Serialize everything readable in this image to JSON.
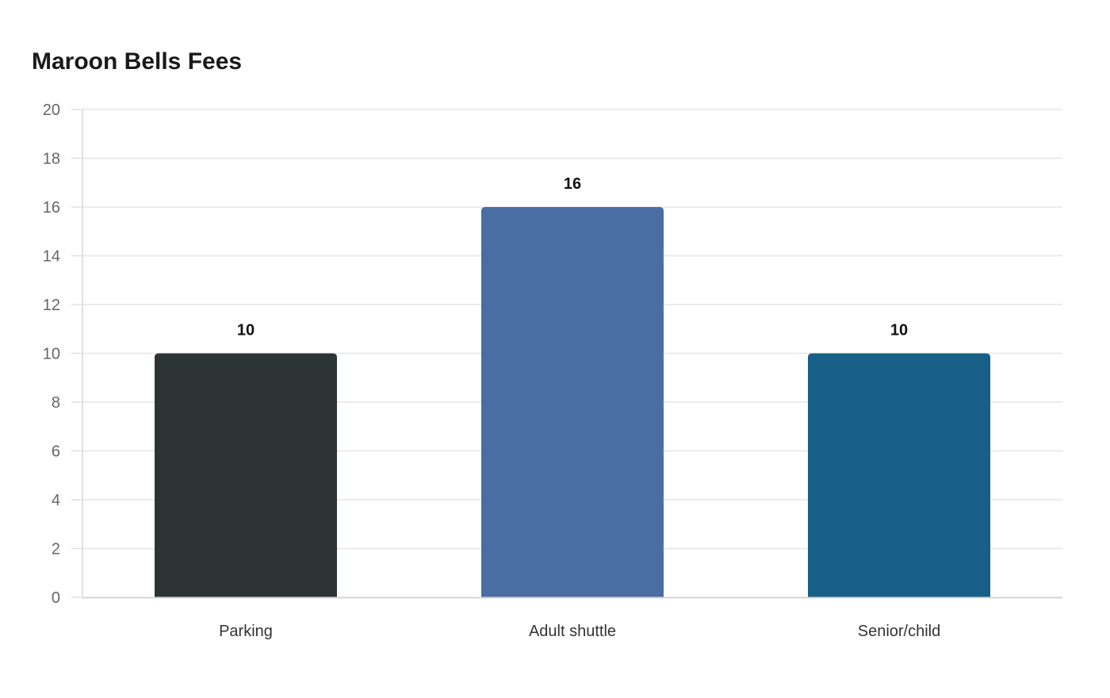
{
  "chart_data": {
    "type": "bar",
    "title": "Maroon Bells Fees",
    "categories": [
      "Parking",
      "Adult shuttle",
      "Senior/child"
    ],
    "values": [
      10,
      16,
      10
    ],
    "colors": [
      "#2d3436",
      "#4a6ea3",
      "#175f86"
    ],
    "ylim": [
      0,
      20
    ],
    "yticks": [
      0,
      2,
      4,
      6,
      8,
      10,
      12,
      14,
      16,
      18,
      20
    ],
    "xlabel": "",
    "ylabel": "",
    "grid": true,
    "legend": "none"
  }
}
